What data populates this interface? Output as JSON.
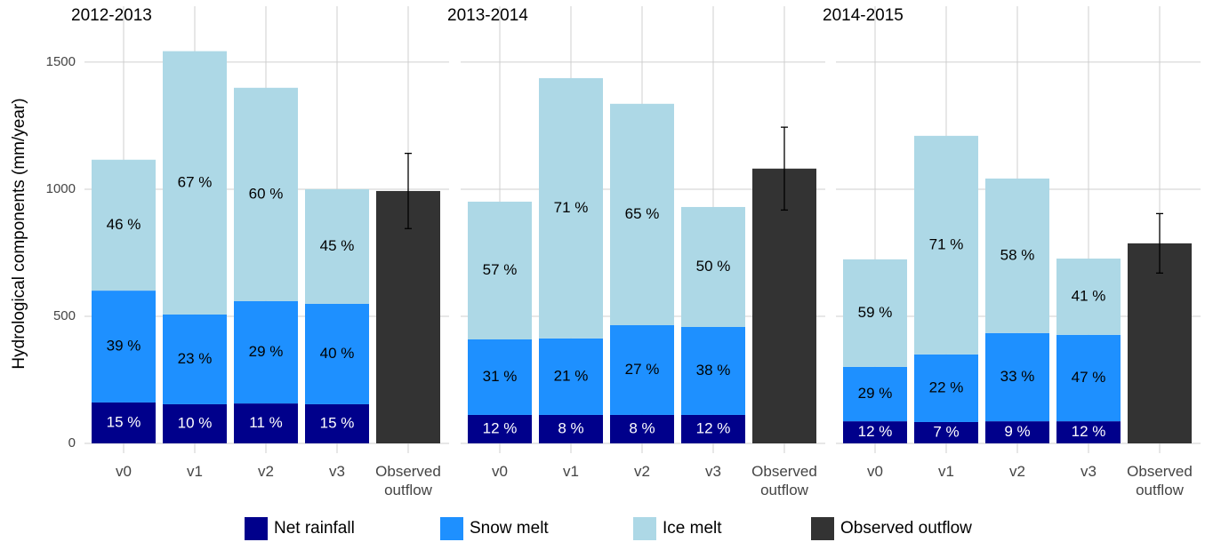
{
  "chart_data": [
    {
      "type": "bar",
      "title": "2012-2013",
      "ylabel": "Hydrological components (mm/year)",
      "categories": [
        "v0",
        "v1",
        "v2",
        "v3",
        "Observed outflow"
      ],
      "ylim": [
        0,
        1650
      ],
      "yticks": [
        0,
        500,
        1000,
        1500
      ],
      "grid": true,
      "series": [
        {
          "name": "Net rainfall",
          "color": "#00008b",
          "values": [
            161,
            154,
            157,
            154,
            null
          ],
          "value_labels": [
            "15 %",
            "10 %",
            "11 %",
            "15 %",
            null
          ]
        },
        {
          "name": "Snow melt",
          "color": "#1e90ff",
          "values": [
            440,
            353,
            403,
            395,
            null
          ],
          "value_labels": [
            "39 %",
            "23 %",
            "29 %",
            "40 %",
            null
          ]
        },
        {
          "name": "Ice melt",
          "color": "#add8e6",
          "values": [
            515,
            1036,
            839,
            451,
            null
          ],
          "value_labels": [
            "46 %",
            "67 %",
            "60 %",
            "45 %",
            null
          ]
        },
        {
          "name": "Observed outflow",
          "color": "#333333",
          "values": [
            null,
            null,
            null,
            null,
            993
          ],
          "errors": [
            null,
            null,
            null,
            null,
            148
          ]
        }
      ]
    },
    {
      "type": "bar",
      "title": "2013-2014",
      "categories": [
        "v0",
        "v1",
        "v2",
        "v3",
        "Observed outflow"
      ],
      "ylim": [
        0,
        1650
      ],
      "yticks": [
        0,
        500,
        1000,
        1500
      ],
      "grid": true,
      "series": [
        {
          "name": "Net rainfall",
          "color": "#00008b",
          "values": [
            112,
            112,
            112,
            112,
            null
          ],
          "value_labels": [
            "12 %",
            "8 %",
            "8 %",
            "12 %",
            null
          ]
        },
        {
          "name": "Snow melt",
          "color": "#1e90ff",
          "values": [
            297,
            301,
            353,
            346,
            null
          ],
          "value_labels": [
            "31 %",
            "21 %",
            "27 %",
            "38 %",
            null
          ]
        },
        {
          "name": "Ice melt",
          "color": "#add8e6",
          "values": [
            542,
            1024,
            871,
            472,
            null
          ],
          "value_labels": [
            "57 %",
            "71 %",
            "65 %",
            "50 %",
            null
          ]
        },
        {
          "name": "Observed outflow",
          "color": "#333333",
          "values": [
            null,
            null,
            null,
            null,
            1081
          ],
          "errors": [
            null,
            null,
            null,
            null,
            163
          ]
        }
      ]
    },
    {
      "type": "bar",
      "title": "2014-2015",
      "categories": [
        "v0",
        "v1",
        "v2",
        "v3",
        "Observed outflow"
      ],
      "ylim": [
        0,
        1650
      ],
      "yticks": [
        0,
        500,
        1000,
        1500
      ],
      "grid": true,
      "series": [
        {
          "name": "Net rainfall",
          "color": "#00008b",
          "values": [
            87,
            84,
            87,
            87,
            null
          ],
          "value_labels": [
            "12 %",
            "7 %",
            "9 %",
            "12 %",
            null
          ]
        },
        {
          "name": "Snow melt",
          "color": "#1e90ff",
          "values": [
            214,
            266,
            347,
            340,
            null
          ],
          "value_labels": [
            "29 %",
            "22 %",
            "33 %",
            "47 %",
            null
          ]
        },
        {
          "name": "Ice melt",
          "color": "#add8e6",
          "values": [
            423,
            860,
            608,
            300,
            null
          ],
          "value_labels": [
            "59 %",
            "71 %",
            "58 %",
            "41 %",
            null
          ]
        },
        {
          "name": "Observed outflow",
          "color": "#333333",
          "values": [
            null,
            null,
            null,
            null,
            787
          ],
          "errors": [
            null,
            null,
            null,
            null,
            117
          ]
        }
      ]
    }
  ]
}
